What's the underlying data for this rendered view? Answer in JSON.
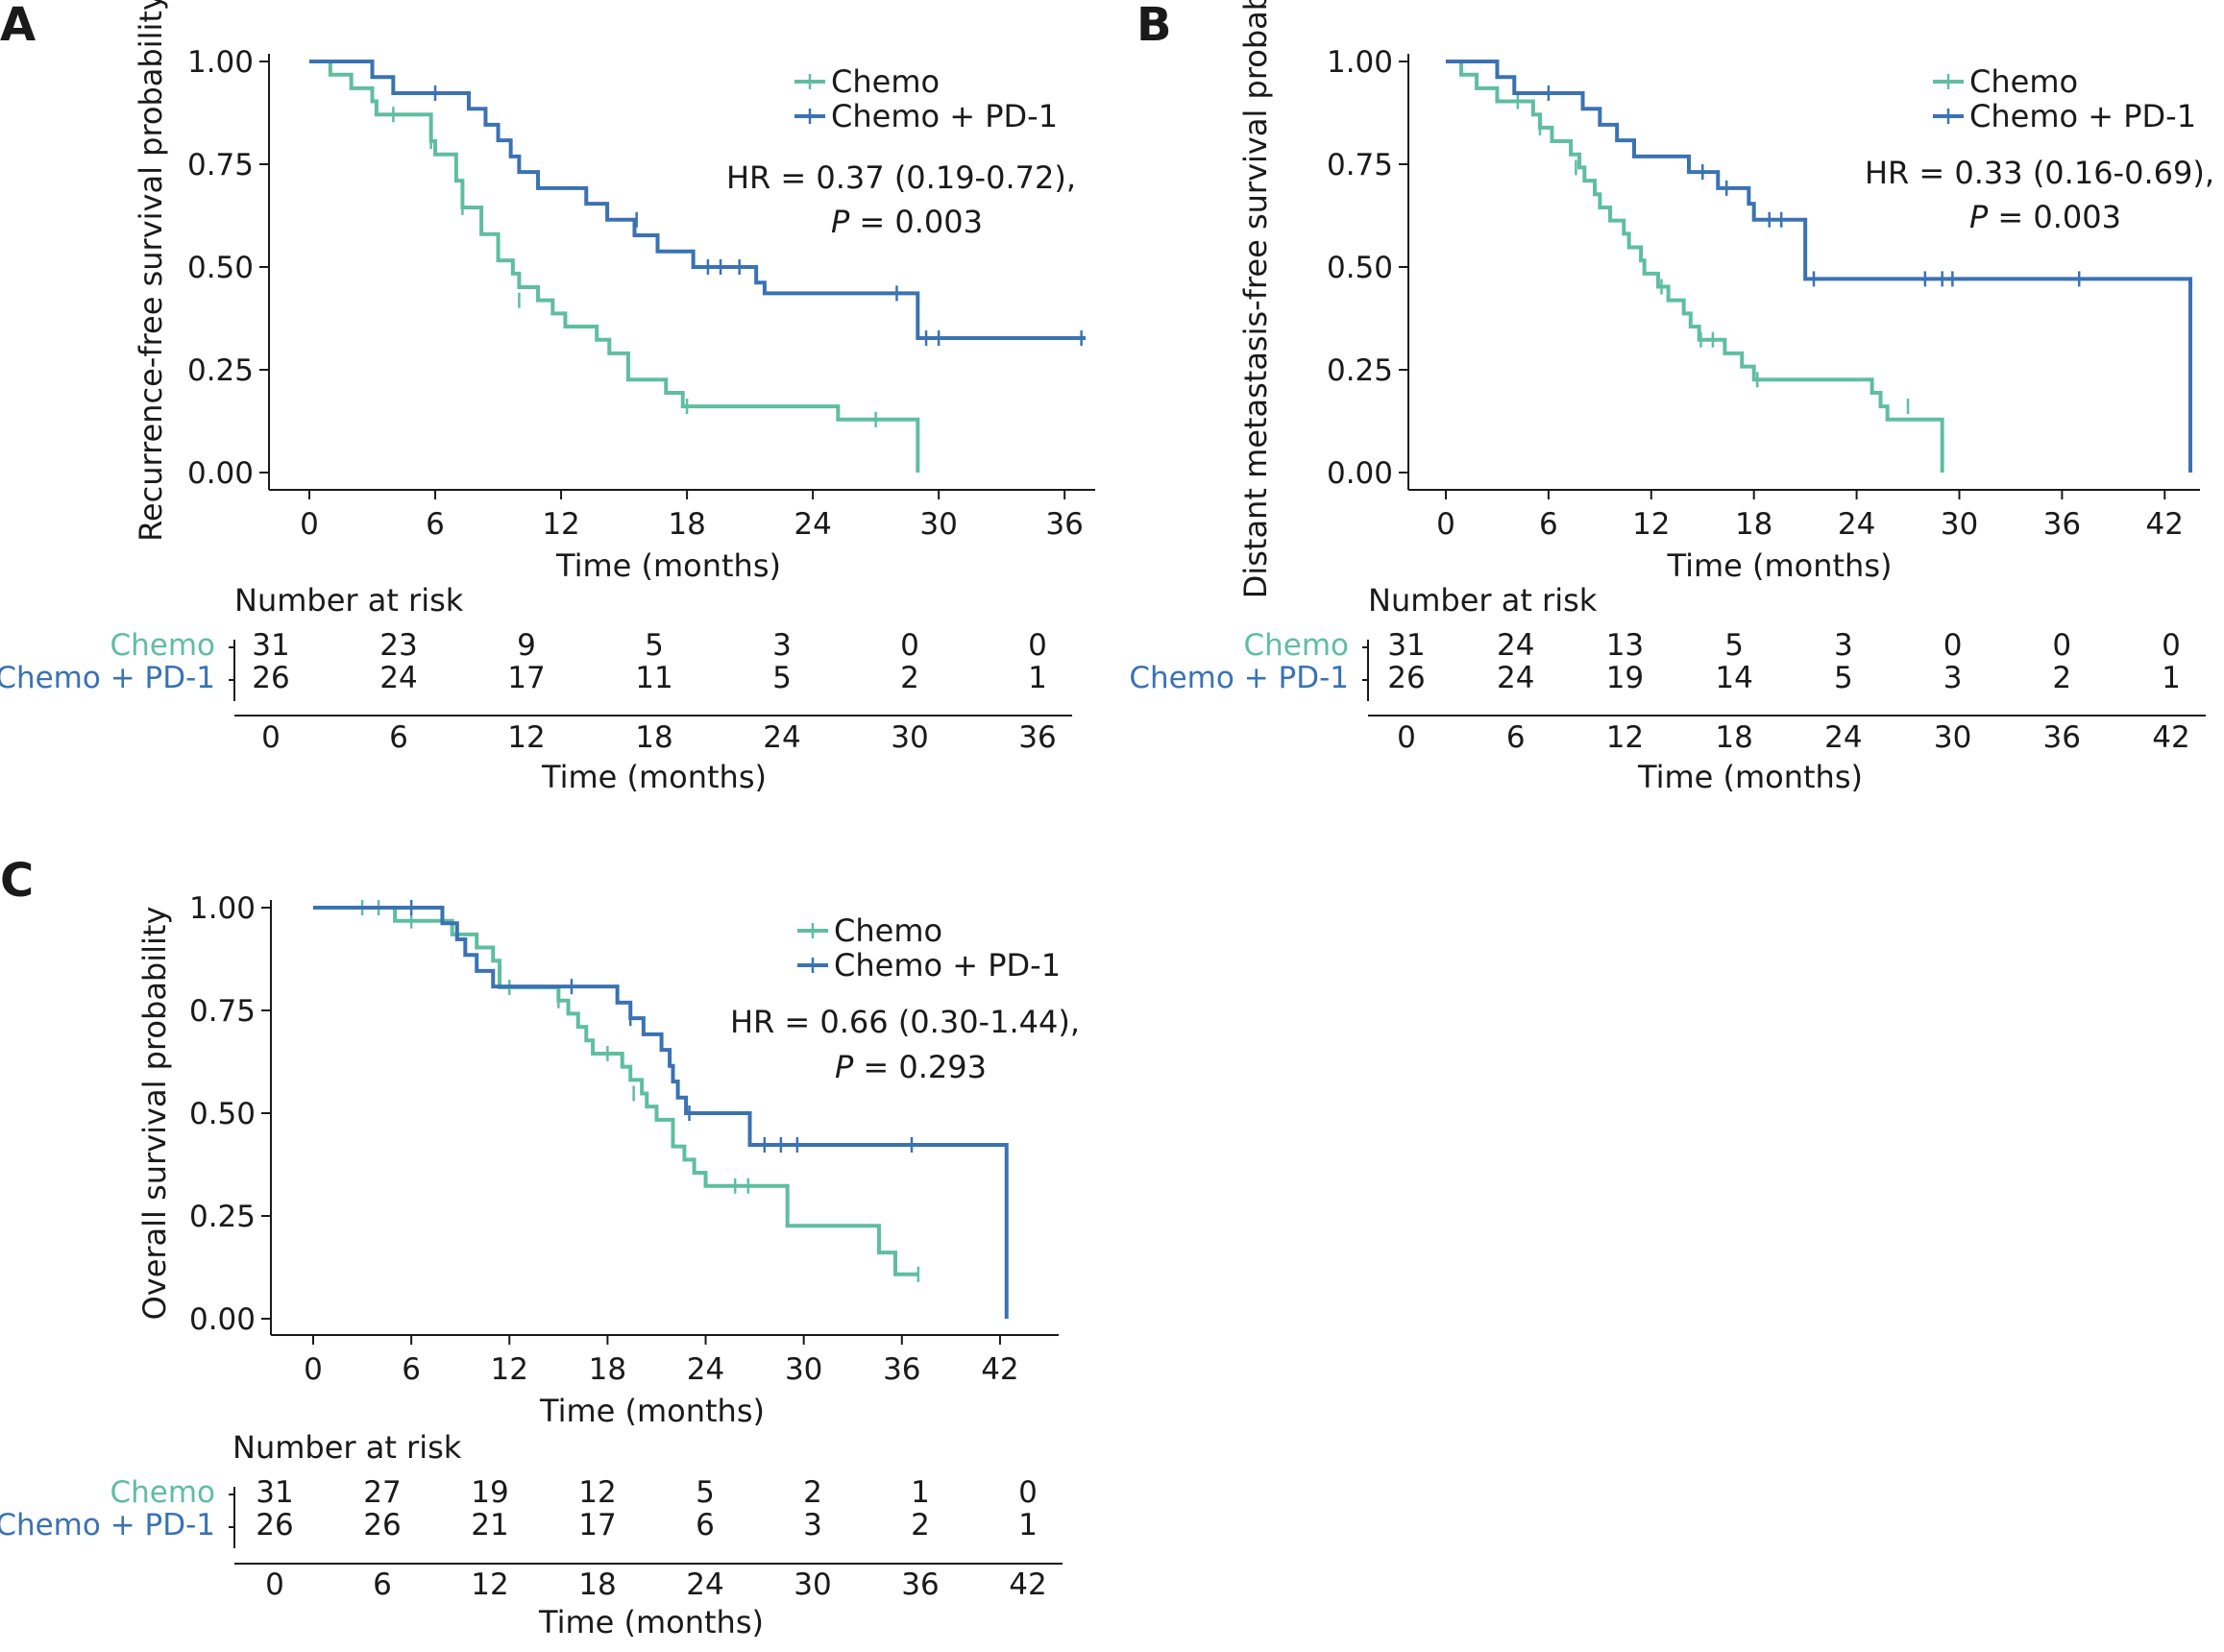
{
  "colors": {
    "chemo": "#5fbea0",
    "pd1": "#3a72b4",
    "axis": "#1a1a1a"
  },
  "risk_table": {
    "title": "Number at risk",
    "xlabel": "Time (months)"
  },
  "chart_data": [
    {
      "panel": "A",
      "type": "line",
      "ylabel": "Recurrence-free survival probability",
      "xlabel": "Time (months)",
      "xlim": [
        0,
        37
      ],
      "ylim": [
        0,
        1
      ],
      "xticks": [
        0,
        6,
        12,
        18,
        24,
        30,
        36
      ],
      "yticks": [
        "0.00",
        "0.25",
        "0.50",
        "0.75",
        "1.00"
      ],
      "grid": false,
      "legend_position": "top-right",
      "hr_text": "HR = 0.37 (0.19-0.72),",
      "p_label": "P",
      "p_value": " = 0.003",
      "series": [
        {
          "name": "Chemo",
          "steps": [
            [
              0,
              1.0
            ],
            [
              1,
              0.968
            ],
            [
              2,
              0.935
            ],
            [
              3,
              0.903
            ],
            [
              3.2,
              0.871
            ],
            [
              5.8,
              0.806
            ],
            [
              6,
              0.774
            ],
            [
              7,
              0.71
            ],
            [
              7.3,
              0.645
            ],
            [
              8.2,
              0.58
            ],
            [
              9,
              0.516
            ],
            [
              9.7,
              0.484
            ],
            [
              10,
              0.451
            ],
            [
              10.9,
              0.419
            ],
            [
              11.6,
              0.387
            ],
            [
              12.2,
              0.355
            ],
            [
              13.7,
              0.323
            ],
            [
              14.3,
              0.29
            ],
            [
              15.2,
              0.226
            ],
            [
              17,
              0.194
            ],
            [
              17.8,
              0.161
            ],
            [
              25.2,
              0.129
            ],
            [
              29,
              0.0
            ]
          ],
          "censor": [
            [
              4,
              0.871
            ],
            [
              5.8,
              0.806
            ],
            [
              7.3,
              0.645
            ],
            [
              10,
              0.419
            ],
            [
              18,
              0.161
            ],
            [
              27,
              0.129
            ]
          ],
          "end": 29
        },
        {
          "name": "Chemo + PD-1",
          "steps": [
            [
              0,
              1.0
            ],
            [
              3,
              0.962
            ],
            [
              4,
              0.923
            ],
            [
              7.6,
              0.885
            ],
            [
              8.4,
              0.846
            ],
            [
              9,
              0.808
            ],
            [
              9.6,
              0.769
            ],
            [
              10,
              0.731
            ],
            [
              10.9,
              0.692
            ],
            [
              13.2,
              0.654
            ],
            [
              14.2,
              0.615
            ],
            [
              15.5,
              0.577
            ],
            [
              16.6,
              0.538
            ],
            [
              18.3,
              0.5
            ],
            [
              21.3,
              0.462
            ],
            [
              21.7,
              0.436
            ],
            [
              29,
              0.327
            ]
          ],
          "censor": [
            [
              6,
              0.923
            ],
            [
              15.6,
              0.615
            ],
            [
              19,
              0.5
            ],
            [
              19.6,
              0.5
            ],
            [
              20.5,
              0.5
            ],
            [
              28,
              0.436
            ],
            [
              29.4,
              0.327
            ],
            [
              30,
              0.327
            ],
            [
              36.8,
              0.327
            ]
          ],
          "end": 37
        }
      ],
      "risk_xticks": [
        0,
        6,
        12,
        18,
        24,
        30,
        36
      ],
      "risk": [
        {
          "name": "Chemo",
          "values": [
            "31",
            "23",
            "9",
            "5",
            "3",
            "0",
            "0"
          ]
        },
        {
          "name": "Chemo + PD-1",
          "values": [
            "26",
            "24",
            "17",
            "11",
            "5",
            "2",
            "1"
          ]
        }
      ]
    },
    {
      "panel": "B",
      "type": "line",
      "ylabel": "Distant metastasis-free survival probability",
      "xlabel": "Time (months)",
      "xlim": [
        0,
        43.5
      ],
      "ylim": [
        0,
        1
      ],
      "xticks": [
        0,
        6,
        12,
        18,
        24,
        30,
        36,
        42
      ],
      "yticks": [
        "0.00",
        "0.25",
        "0.50",
        "0.75",
        "1.00"
      ],
      "grid": false,
      "legend_position": "top-right",
      "hr_text": "HR = 0.33 (0.16-0.69),",
      "p_label": "P",
      "p_value": " = 0.003",
      "series": [
        {
          "name": "Chemo",
          "steps": [
            [
              0,
              1.0
            ],
            [
              0.9,
              0.968
            ],
            [
              1.8,
              0.935
            ],
            [
              3,
              0.903
            ],
            [
              5.1,
              0.871
            ],
            [
              5.5,
              0.839
            ],
            [
              6.2,
              0.806
            ],
            [
              7.3,
              0.774
            ],
            [
              7.8,
              0.742
            ],
            [
              8.1,
              0.71
            ],
            [
              8.7,
              0.677
            ],
            [
              9,
              0.645
            ],
            [
              9.6,
              0.613
            ],
            [
              10.4,
              0.581
            ],
            [
              10.7,
              0.548
            ],
            [
              11.4,
              0.516
            ],
            [
              11.6,
              0.484
            ],
            [
              12.4,
              0.452
            ],
            [
              13,
              0.419
            ],
            [
              13.9,
              0.387
            ],
            [
              14.3,
              0.355
            ],
            [
              14.8,
              0.323
            ],
            [
              16.3,
              0.29
            ],
            [
              17.3,
              0.258
            ],
            [
              18,
              0.226
            ],
            [
              24.9,
              0.194
            ],
            [
              25.4,
              0.161
            ],
            [
              25.8,
              0.129
            ],
            [
              29,
              0.0
            ]
          ],
          "censor": [
            [
              4.2,
              0.903
            ],
            [
              5.5,
              0.839
            ],
            [
              7.6,
              0.742
            ],
            [
              12.6,
              0.452
            ],
            [
              14.9,
              0.323
            ],
            [
              15.6,
              0.323
            ],
            [
              18.2,
              0.226
            ],
            [
              27,
              0.161
            ]
          ],
          "end": 29
        },
        {
          "name": "Chemo + PD-1",
          "steps": [
            [
              0,
              1.0
            ],
            [
              3,
              0.962
            ],
            [
              4,
              0.923
            ],
            [
              8,
              0.885
            ],
            [
              9,
              0.846
            ],
            [
              10,
              0.808
            ],
            [
              11,
              0.769
            ],
            [
              14.2,
              0.731
            ],
            [
              15.9,
              0.692
            ],
            [
              17.7,
              0.654
            ],
            [
              18,
              0.615
            ],
            [
              21,
              0.471
            ],
            [
              43.5,
              0.0
            ]
          ],
          "censor": [
            [
              6,
              0.923
            ],
            [
              15,
              0.731
            ],
            [
              16.4,
              0.692
            ],
            [
              18.9,
              0.615
            ],
            [
              19.6,
              0.615
            ],
            [
              21.5,
              0.471
            ],
            [
              28,
              0.471
            ],
            [
              29,
              0.471
            ],
            [
              29.6,
              0.471
            ],
            [
              37,
              0.471
            ]
          ],
          "end": 43.5
        }
      ],
      "risk_xticks": [
        0,
        6,
        12,
        18,
        24,
        30,
        36,
        42
      ],
      "risk": [
        {
          "name": "Chemo",
          "values": [
            "31",
            "24",
            "13",
            "5",
            "3",
            "0",
            "0",
            "0"
          ]
        },
        {
          "name": "Chemo + PD-1",
          "values": [
            "26",
            "24",
            "19",
            "14",
            "5",
            "3",
            "2",
            "1"
          ]
        }
      ]
    },
    {
      "panel": "C",
      "type": "line",
      "ylabel": "Overall survival probability",
      "xlabel": "Time (months)",
      "xlim": [
        0,
        45
      ],
      "ylim": [
        0,
        1
      ],
      "xticks": [
        0,
        6,
        12,
        18,
        24,
        30,
        36,
        42
      ],
      "yticks": [
        "0.00",
        "0.25",
        "0.50",
        "0.75",
        "1.00"
      ],
      "grid": false,
      "legend_position": "top-right",
      "hr_text": "HR = 0.66 (0.30-1.44),",
      "p_label": "P",
      "p_value": " = 0.293",
      "series": [
        {
          "name": "Chemo",
          "steps": [
            [
              0,
              1.0
            ],
            [
              5,
              0.968
            ],
            [
              8.5,
              0.935
            ],
            [
              10,
              0.903
            ],
            [
              11,
              0.871
            ],
            [
              11.4,
              0.806
            ],
            [
              15,
              0.774
            ],
            [
              15.6,
              0.742
            ],
            [
              16.2,
              0.71
            ],
            [
              16.7,
              0.677
            ],
            [
              17.1,
              0.645
            ],
            [
              18.9,
              0.613
            ],
            [
              19.4,
              0.581
            ],
            [
              20.1,
              0.548
            ],
            [
              20.4,
              0.516
            ],
            [
              21,
              0.484
            ],
            [
              22,
              0.419
            ],
            [
              22.7,
              0.387
            ],
            [
              23.3,
              0.355
            ],
            [
              24,
              0.323
            ],
            [
              29,
              0.226
            ],
            [
              34.6,
              0.161
            ],
            [
              35.6,
              0.108
            ],
            [
              37,
              0.108
            ]
          ],
          "censor": [
            [
              3,
              1.0
            ],
            [
              4,
              1.0
            ],
            [
              6,
              0.968
            ],
            [
              12,
              0.806
            ],
            [
              15,
              0.774
            ],
            [
              18,
              0.645
            ],
            [
              19.6,
              0.548
            ],
            [
              25.8,
              0.323
            ],
            [
              26.6,
              0.323
            ],
            [
              37,
              0.108
            ]
          ],
          "end": 37
        },
        {
          "name": "Chemo + PD-1",
          "steps": [
            [
              0,
              1.0
            ],
            [
              7.9,
              0.962
            ],
            [
              8.8,
              0.923
            ],
            [
              9.3,
              0.885
            ],
            [
              10,
              0.846
            ],
            [
              11,
              0.808
            ],
            [
              14.6,
              0.808
            ],
            [
              15,
              0.808
            ],
            [
              18.6,
              0.769
            ],
            [
              19.4,
              0.731
            ],
            [
              20.2,
              0.692
            ],
            [
              21.3,
              0.654
            ],
            [
              21.8,
              0.615
            ],
            [
              22,
              0.577
            ],
            [
              22.3,
              0.538
            ],
            [
              22.8,
              0.5
            ],
            [
              26.7,
              0.423
            ],
            [
              42.4,
              0.0
            ]
          ],
          "censor": [
            [
              6,
              1.0
            ],
            [
              15.8,
              0.808
            ],
            [
              19.4,
              0.731
            ],
            [
              23,
              0.5
            ],
            [
              27.6,
              0.423
            ],
            [
              28.6,
              0.423
            ],
            [
              29.6,
              0.423
            ],
            [
              36.6,
              0.423
            ]
          ],
          "end": 42.4
        }
      ],
      "risk_xticks": [
        0,
        6,
        12,
        18,
        24,
        30,
        36,
        42
      ],
      "risk": [
        {
          "name": "Chemo",
          "values": [
            "31",
            "27",
            "19",
            "12",
            "5",
            "2",
            "1",
            "0"
          ]
        },
        {
          "name": "Chemo + PD-1",
          "values": [
            "26",
            "26",
            "21",
            "17",
            "6",
            "3",
            "2",
            "1"
          ]
        }
      ]
    }
  ]
}
